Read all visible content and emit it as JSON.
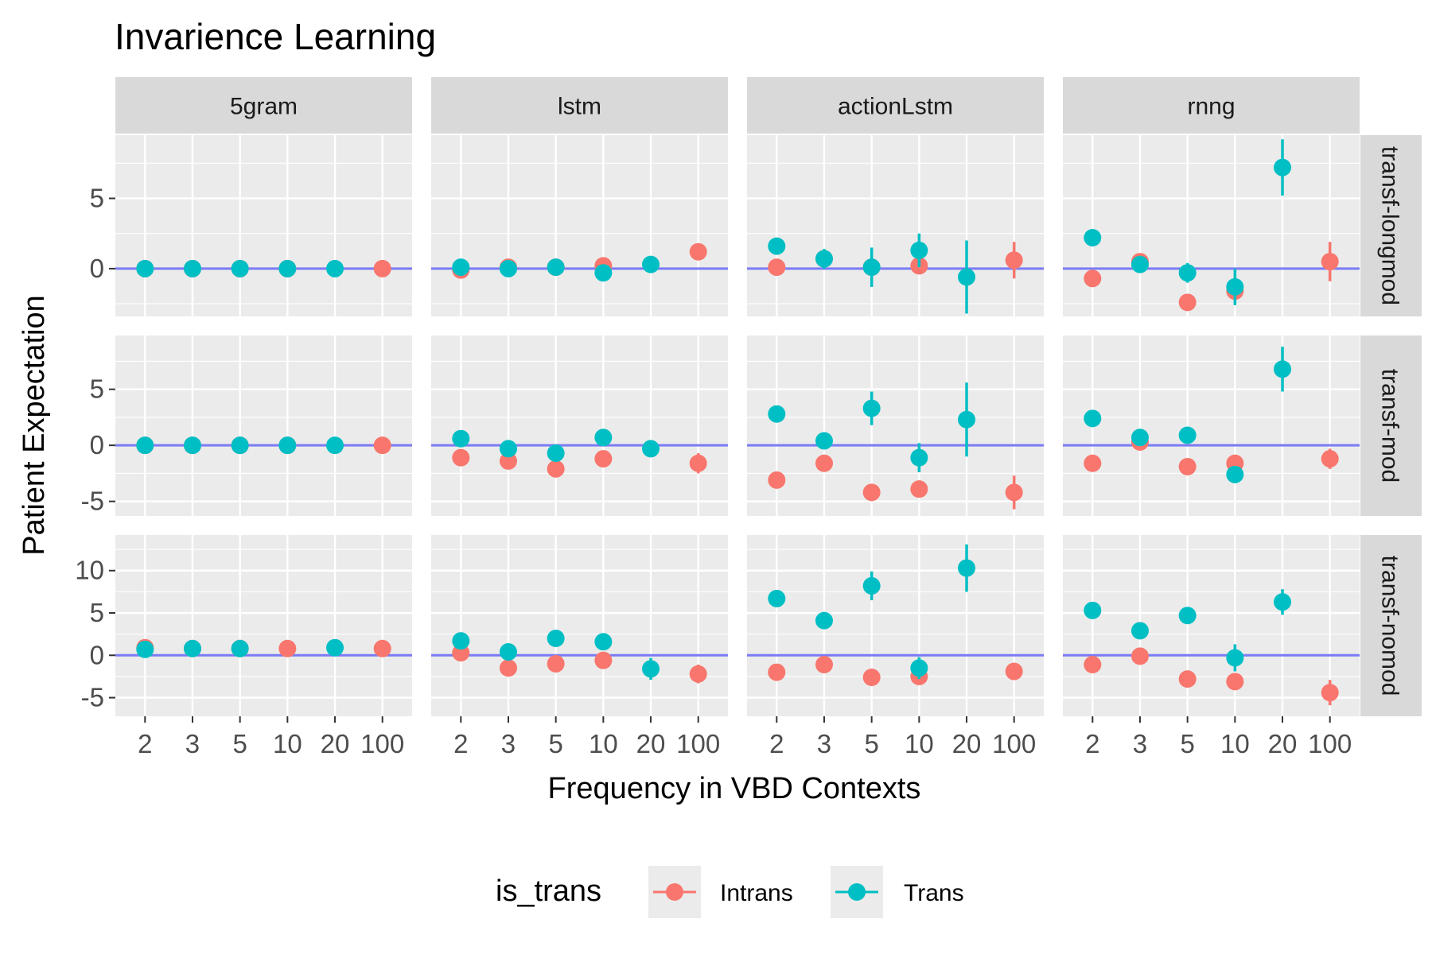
{
  "chart_data": {
    "type": "scatter",
    "title": "Invarience Learning",
    "xlabel": "Frequency in VBD Contexts",
    "ylabel": "Patient Expectation",
    "x_categories": [
      "2",
      "3",
      "5",
      "10",
      "20",
      "100"
    ],
    "columns": [
      "5gram",
      "lstm",
      "actionLstm",
      "rnng"
    ],
    "rows": [
      {
        "label": "transf-longmod",
        "ylim": [
          -3.4,
          9.5
        ],
        "ticks": [
          0,
          5
        ]
      },
      {
        "label": "transf-mod",
        "ylim": [
          -6.3,
          9.8
        ],
        "ticks": [
          -5,
          0,
          5
        ]
      },
      {
        "label": "transf-nomod",
        "ylim": [
          -7.2,
          14.2
        ],
        "ticks": [
          -5,
          0,
          5,
          10
        ]
      }
    ],
    "legend": {
      "title": "is_trans",
      "position": "bottom",
      "items": [
        {
          "label": "Intrans",
          "color": "#F8766D"
        },
        {
          "label": "Trans",
          "color": "#00BFC4"
        }
      ]
    },
    "colors": {
      "zero_line": "#7B7BF5"
    },
    "panels": [
      {
        "row": "transf-longmod",
        "col": "5gram",
        "intrans": [
          [
            0,
            0,
            0
          ],
          [
            1,
            0,
            0
          ],
          [
            2,
            0,
            0
          ],
          [
            3,
            0,
            0
          ],
          [
            5,
            0,
            0
          ]
        ],
        "trans": [
          [
            0,
            0,
            0
          ],
          [
            1,
            0,
            0
          ],
          [
            2,
            0,
            0
          ],
          [
            3,
            0,
            0
          ],
          [
            4,
            0,
            0
          ]
        ]
      },
      {
        "row": "transf-longmod",
        "col": "lstm",
        "intrans": [
          [
            0,
            -0.1,
            0.1
          ],
          [
            1,
            0.1,
            0.1
          ],
          [
            2,
            0.1,
            0.1
          ],
          [
            3,
            0.2,
            0.2
          ],
          [
            5,
            1.2,
            0.1
          ]
        ],
        "trans": [
          [
            0,
            0.1,
            0.1
          ],
          [
            1,
            0.0,
            0.1
          ],
          [
            2,
            0.1,
            0.1
          ],
          [
            3,
            -0.3,
            0.2
          ],
          [
            4,
            0.3,
            0.1
          ]
        ]
      },
      {
        "row": "transf-longmod",
        "col": "actionLstm",
        "intrans": [
          [
            0,
            0.1,
            0.2
          ],
          [
            1,
            0.7,
            0.3
          ],
          [
            2,
            0.1,
            0.5
          ],
          [
            3,
            0.2,
            0.3
          ],
          [
            5,
            0.6,
            1.3
          ]
        ],
        "trans": [
          [
            0,
            1.6,
            0.2
          ],
          [
            1,
            0.7,
            0.7
          ],
          [
            2,
            0.1,
            1.4
          ],
          [
            3,
            1.3,
            1.2
          ],
          [
            4,
            -0.6,
            2.6
          ]
        ]
      },
      {
        "row": "transf-longmod",
        "col": "rnng",
        "intrans": [
          [
            0,
            -0.7,
            0.2
          ],
          [
            1,
            0.5,
            0.3
          ],
          [
            2,
            -2.4,
            0.6
          ],
          [
            3,
            -1.6,
            0.3
          ],
          [
            5,
            0.5,
            1.4
          ]
        ],
        "trans": [
          [
            0,
            2.2,
            0.2
          ],
          [
            1,
            0.3,
            0.4
          ],
          [
            2,
            -0.3,
            0.7
          ],
          [
            3,
            -1.3,
            1.3
          ],
          [
            4,
            7.2,
            2.0
          ]
        ]
      },
      {
        "row": "transf-mod",
        "col": "5gram",
        "intrans": [
          [
            0,
            0,
            0
          ],
          [
            1,
            0,
            0
          ],
          [
            2,
            0,
            0
          ],
          [
            3,
            0,
            0
          ],
          [
            5,
            0,
            0
          ]
        ],
        "trans": [
          [
            0,
            0,
            0
          ],
          [
            1,
            0,
            0
          ],
          [
            2,
            0,
            0
          ],
          [
            3,
            0,
            0
          ],
          [
            4,
            0,
            0
          ]
        ]
      },
      {
        "row": "transf-mod",
        "col": "lstm",
        "intrans": [
          [
            0,
            -1.1,
            0.2
          ],
          [
            1,
            -1.4,
            0.2
          ],
          [
            2,
            -2.1,
            0.2
          ],
          [
            3,
            -1.2,
            0.2
          ],
          [
            5,
            -1.6,
            0.9
          ]
        ],
        "trans": [
          [
            0,
            0.6,
            0.2
          ],
          [
            1,
            -0.3,
            0.2
          ],
          [
            2,
            -0.7,
            0.2
          ],
          [
            3,
            0.7,
            0.2
          ],
          [
            4,
            -0.3,
            0.2
          ]
        ]
      },
      {
        "row": "transf-mod",
        "col": "actionLstm",
        "intrans": [
          [
            0,
            -3.1,
            0.2
          ],
          [
            1,
            -1.6,
            0.2
          ],
          [
            2,
            -4.2,
            0.7
          ],
          [
            3,
            -3.9,
            0.3
          ],
          [
            5,
            -4.2,
            1.5
          ]
        ],
        "trans": [
          [
            0,
            2.8,
            0.2
          ],
          [
            1,
            0.4,
            0.4
          ],
          [
            2,
            3.3,
            1.5
          ],
          [
            3,
            -1.1,
            1.3
          ],
          [
            4,
            2.3,
            3.3
          ]
        ]
      },
      {
        "row": "transf-mod",
        "col": "rnng",
        "intrans": [
          [
            0,
            -1.6,
            0.2
          ],
          [
            1,
            0.3,
            0.3
          ],
          [
            2,
            -1.9,
            0.3
          ],
          [
            3,
            -1.6,
            0.3
          ],
          [
            5,
            -1.2,
            0.9
          ]
        ],
        "trans": [
          [
            0,
            2.4,
            0.2
          ],
          [
            1,
            0.7,
            0.2
          ],
          [
            2,
            0.9,
            0.2
          ],
          [
            3,
            -2.6,
            0.7
          ],
          [
            4,
            6.8,
            2.0
          ]
        ]
      },
      {
        "row": "transf-nomod",
        "col": "5gram",
        "intrans": [
          [
            0,
            0.9,
            0.3
          ],
          [
            1,
            0.8,
            0.2
          ],
          [
            2,
            0.8,
            0.2
          ],
          [
            3,
            0.8,
            0.2
          ],
          [
            5,
            0.8,
            0.2
          ]
        ],
        "trans": [
          [
            0,
            0.7,
            0.3
          ],
          [
            1,
            0.8,
            0.2
          ],
          [
            2,
            0.8,
            0.3
          ],
          [
            4,
            0.9,
            0.2
          ]
        ]
      },
      {
        "row": "transf-nomod",
        "col": "lstm",
        "intrans": [
          [
            0,
            0.3,
            0.2
          ],
          [
            1,
            -1.5,
            0.3
          ],
          [
            2,
            -1.0,
            0.3
          ],
          [
            3,
            -0.6,
            0.3
          ],
          [
            5,
            -2.2,
            1.1
          ]
        ],
        "trans": [
          [
            0,
            1.7,
            0.2
          ],
          [
            1,
            0.4,
            0.2
          ],
          [
            2,
            2.0,
            0.2
          ],
          [
            3,
            1.6,
            0.2
          ],
          [
            4,
            -1.6,
            1.3
          ]
        ]
      },
      {
        "row": "transf-nomod",
        "col": "actionLstm",
        "intrans": [
          [
            0,
            -2.0,
            0.3
          ],
          [
            1,
            -1.1,
            0.3
          ],
          [
            2,
            -2.6,
            0.3
          ],
          [
            3,
            -2.5,
            0.5
          ],
          [
            5,
            -1.9,
            0.5
          ]
        ],
        "trans": [
          [
            0,
            6.7,
            0.2
          ],
          [
            1,
            4.1,
            0.2
          ],
          [
            2,
            8.2,
            1.7
          ],
          [
            3,
            -1.5,
            1.3
          ],
          [
            4,
            10.3,
            2.8
          ]
        ]
      },
      {
        "row": "transf-nomod",
        "col": "rnng",
        "intrans": [
          [
            0,
            -1.1,
            0.3
          ],
          [
            1,
            -0.1,
            0.3
          ],
          [
            2,
            -2.8,
            0.3
          ],
          [
            3,
            -3.1,
            0.5
          ],
          [
            5,
            -4.4,
            1.5
          ]
        ],
        "trans": [
          [
            0,
            5.3,
            0.2
          ],
          [
            1,
            2.9,
            0.2
          ],
          [
            2,
            4.7,
            0.2
          ],
          [
            3,
            -0.3,
            1.6
          ],
          [
            4,
            6.3,
            1.5
          ]
        ]
      }
    ]
  }
}
